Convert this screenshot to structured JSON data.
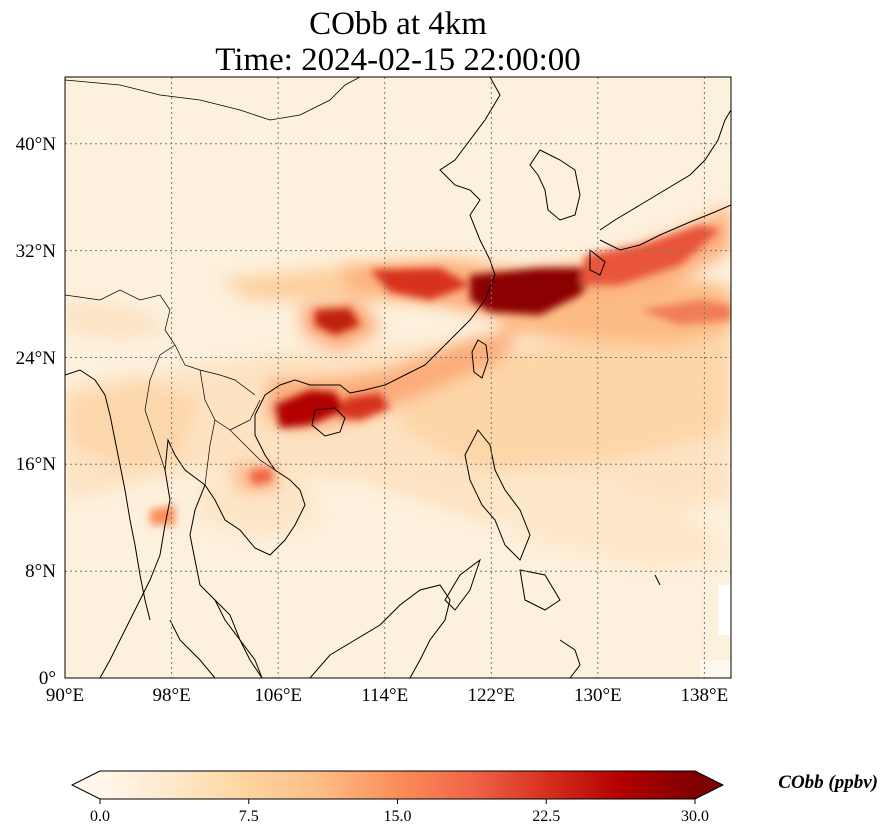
{
  "figure": {
    "title_line1": "CObb at 4km",
    "title_line2": "Time: 2024-02-15 22:00:00"
  },
  "map": {
    "variable": "CObb",
    "projection": "PlateCarree",
    "lon_range": [
      90,
      140
    ],
    "lat_range": [
      0,
      45
    ],
    "gridlines": "dotted gray",
    "lon_ticks": [
      "90°E",
      "98°E",
      "106°E",
      "114°E",
      "122°E",
      "130°E",
      "138°E"
    ],
    "lat_ticks": [
      "0°",
      "8°N",
      "16°N",
      "24°N",
      "32°N",
      "40°N"
    ],
    "colormap": "OrRd",
    "plumes": [
      {
        "region": "East China Sea / southern Japan",
        "lon": 125,
        "lat": 29,
        "level": "≥30 ppbv"
      },
      {
        "region": "Gulf of Tonkin / Hainan",
        "lon": 109,
        "lat": 20,
        "level": "≈25 ppbv"
      },
      {
        "region": "Sichuan Basin",
        "lon": 109.5,
        "lat": 27.5,
        "level": "≈22 ppbv"
      },
      {
        "region": "South China coast",
        "lon": 116,
        "lat": 20.5,
        "level": "≈20 ppbv"
      },
      {
        "region": "Western Pacific band",
        "lon": 133,
        "lat": 29,
        "level": "≈15 ppbv"
      },
      {
        "region": "Cambodia",
        "lon": 104.5,
        "lat": 15.5,
        "level": "≈15 ppbv"
      }
    ]
  },
  "colorbar": {
    "label": "CObb (ppbv)",
    "ticks": [
      "0.0",
      "7.5",
      "15.0",
      "22.5",
      "30.0"
    ],
    "min": 0,
    "max": 30,
    "extend": "both",
    "colors": [
      "#fff7ec",
      "#fee8c8",
      "#fdd49e",
      "#fdbb84",
      "#fc8d59",
      "#ef6548",
      "#d7301f",
      "#b30000",
      "#7f0000"
    ]
  }
}
